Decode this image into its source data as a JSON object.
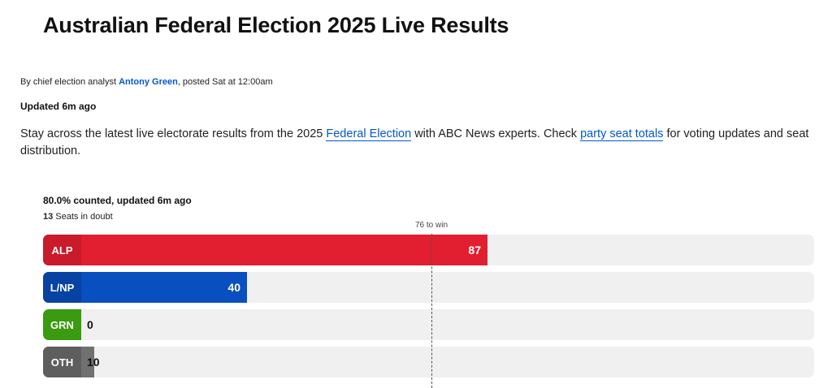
{
  "article": {
    "title": "Australian Federal Election 2025 Live Results",
    "byline_prefix": "By chief election analyst ",
    "author": "Antony Green",
    "byline_posted": ", posted Sat at  12:00am",
    "updated": "Updated 6m ago",
    "lead_part1": "Stay across the latest live electorate results from the 2025 ",
    "lead_link1": "Federal Election",
    "lead_part2": " with ABC News experts. Check ",
    "lead_link2": "party seat totals",
    "lead_part3": " for voting updates and seat distribution."
  },
  "results": {
    "counted": "80.0% counted, updated 6m ago",
    "doubt_count": "13",
    "doubt_label": " Seats in doubt",
    "majority_label": "76 to win",
    "majority": 76,
    "scale_max": 151,
    "parties": [
      {
        "name": "ALP",
        "seats": 87,
        "color": "#e11f30",
        "tab": "#c91b2b"
      },
      {
        "name": "L/NP",
        "seats": 40,
        "color": "#0a4fbf",
        "tab": "#0842a3"
      },
      {
        "name": "GRN",
        "seats": 0,
        "color": "#3a9a10",
        "tab": "#3a9a10"
      },
      {
        "name": "OTH",
        "seats": 10,
        "color": "#707070",
        "tab": "#5e5e5e"
      }
    ]
  }
}
